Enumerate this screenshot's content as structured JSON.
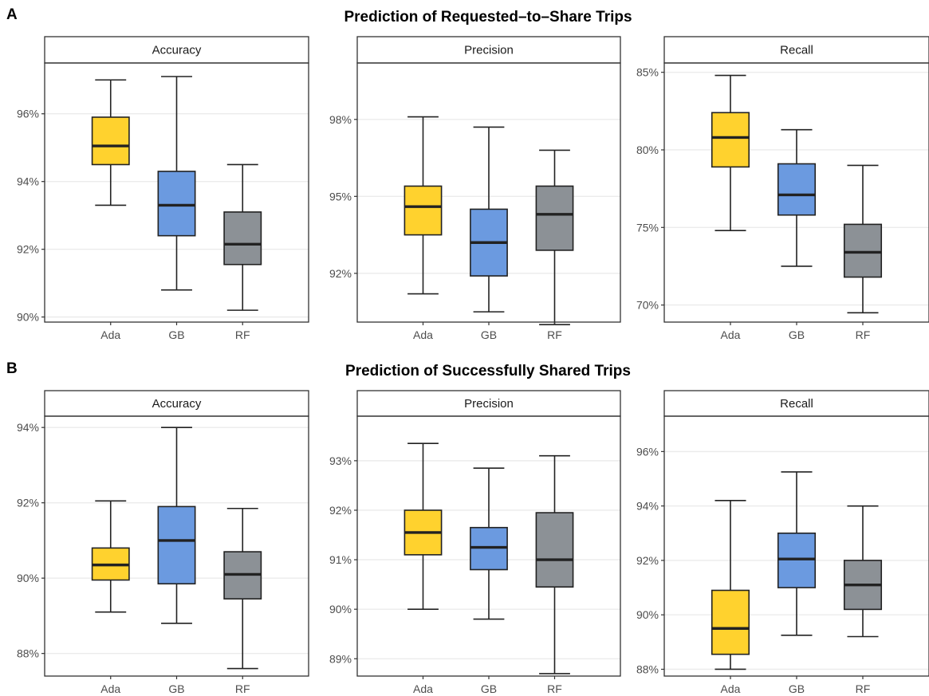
{
  "figure": {
    "panels": [
      {
        "letter": "A",
        "title": "Prediction of Requested–to–Share Trips"
      },
      {
        "letter": "B",
        "title": "Prediction of Successfully Shared Trips"
      }
    ]
  },
  "colors": {
    "Ada": "#FFD22E",
    "GB": "#6B9AE0",
    "RF": "#8C9196"
  },
  "chart_data": [
    {
      "type": "box",
      "facet": "Accuracy",
      "group": "A",
      "categories": [
        "Ada",
        "GB",
        "RF"
      ],
      "ylim": [
        89.85,
        97.5
      ],
      "yticks": [
        {
          "v": 90,
          "label": "90%"
        },
        {
          "v": 92,
          "label": "92%"
        },
        {
          "v": 94,
          "label": "94%"
        },
        {
          "v": 96,
          "label": "96%"
        }
      ],
      "boxes": [
        {
          "name": "Ada",
          "min": 93.3,
          "q1": 94.5,
          "median": 95.05,
          "q3": 95.9,
          "max": 97.0
        },
        {
          "name": "GB",
          "min": 90.8,
          "q1": 92.4,
          "median": 93.3,
          "q3": 94.3,
          "max": 97.1
        },
        {
          "name": "RF",
          "min": 90.2,
          "q1": 91.55,
          "median": 92.15,
          "q3": 93.1,
          "max": 94.5
        }
      ]
    },
    {
      "type": "box",
      "facet": "Precision",
      "group": "A",
      "categories": [
        "Ada",
        "GB",
        "RF"
      ],
      "ylim": [
        90.1,
        100.2
      ],
      "yticks": [
        {
          "v": 92,
          "label": "92%"
        },
        {
          "v": 95,
          "label": "95%"
        },
        {
          "v": 98,
          "label": "98%"
        }
      ],
      "boxes": [
        {
          "name": "Ada",
          "min": 91.2,
          "q1": 93.5,
          "median": 94.6,
          "q3": 95.4,
          "max": 98.1
        },
        {
          "name": "GB",
          "min": 90.5,
          "q1": 91.9,
          "median": 93.2,
          "q3": 94.5,
          "max": 97.7
        },
        {
          "name": "RF",
          "min": 90.0,
          "q1": 92.9,
          "median": 94.3,
          "q3": 95.4,
          "max": 96.8
        }
      ]
    },
    {
      "type": "box",
      "facet": "Recall",
      "group": "A",
      "categories": [
        "Ada",
        "GB",
        "RF"
      ],
      "ylim": [
        68.9,
        85.6
      ],
      "yticks": [
        {
          "v": 70,
          "label": "70%"
        },
        {
          "v": 75,
          "label": "75%"
        },
        {
          "v": 80,
          "label": "80%"
        },
        {
          "v": 85,
          "label": "85%"
        }
      ],
      "boxes": [
        {
          "name": "Ada",
          "min": 74.8,
          "q1": 78.9,
          "median": 80.8,
          "q3": 82.4,
          "max": 84.8
        },
        {
          "name": "GB",
          "min": 72.5,
          "q1": 75.8,
          "median": 77.1,
          "q3": 79.1,
          "max": 81.3
        },
        {
          "name": "RF",
          "min": 69.5,
          "q1": 71.8,
          "median": 73.4,
          "q3": 75.2,
          "max": 79.0
        }
      ]
    },
    {
      "type": "box",
      "facet": "Accuracy",
      "group": "B",
      "categories": [
        "Ada",
        "GB",
        "RF"
      ],
      "ylim": [
        87.4,
        94.3
      ],
      "yticks": [
        {
          "v": 88,
          "label": "88%"
        },
        {
          "v": 90,
          "label": "90%"
        },
        {
          "v": 92,
          "label": "92%"
        },
        {
          "v": 94,
          "label": "94%"
        }
      ],
      "boxes": [
        {
          "name": "Ada",
          "min": 89.1,
          "q1": 89.95,
          "median": 90.35,
          "q3": 90.8,
          "max": 92.05
        },
        {
          "name": "GB",
          "min": 88.8,
          "q1": 89.85,
          "median": 91.0,
          "q3": 91.9,
          "max": 94.0
        },
        {
          "name": "RF",
          "min": 87.6,
          "q1": 89.45,
          "median": 90.1,
          "q3": 90.7,
          "max": 91.85
        }
      ]
    },
    {
      "type": "box",
      "facet": "Precision",
      "group": "B",
      "categories": [
        "Ada",
        "GB",
        "RF"
      ],
      "ylim": [
        88.65,
        93.9
      ],
      "yticks": [
        {
          "v": 89,
          "label": "89%"
        },
        {
          "v": 90,
          "label": "90%"
        },
        {
          "v": 91,
          "label": "91%"
        },
        {
          "v": 92,
          "label": "92%"
        },
        {
          "v": 93,
          "label": "93%"
        }
      ],
      "boxes": [
        {
          "name": "Ada",
          "min": 90.0,
          "q1": 91.1,
          "median": 91.55,
          "q3": 92.0,
          "max": 93.35
        },
        {
          "name": "GB",
          "min": 89.8,
          "q1": 90.8,
          "median": 91.25,
          "q3": 91.65,
          "max": 92.85
        },
        {
          "name": "RF",
          "min": 88.7,
          "q1": 90.45,
          "median": 91.0,
          "q3": 91.95,
          "max": 93.1
        }
      ]
    },
    {
      "type": "box",
      "facet": "Recall",
      "group": "B",
      "categories": [
        "Ada",
        "GB",
        "RF"
      ],
      "ylim": [
        87.75,
        97.3
      ],
      "yticks": [
        {
          "v": 88,
          "label": "88%"
        },
        {
          "v": 90,
          "label": "90%"
        },
        {
          "v": 92,
          "label": "92%"
        },
        {
          "v": 94,
          "label": "94%"
        },
        {
          "v": 96,
          "label": "96%"
        }
      ],
      "boxes": [
        {
          "name": "Ada",
          "min": 88.0,
          "q1": 88.55,
          "median": 89.5,
          "q3": 90.9,
          "max": 94.2
        },
        {
          "name": "GB",
          "min": 89.25,
          "q1": 91.0,
          "median": 92.05,
          "q3": 93.0,
          "max": 95.25
        },
        {
          "name": "RF",
          "min": 89.2,
          "q1": 90.2,
          "median": 91.1,
          "q3": 92.0,
          "max": 94.0
        }
      ]
    }
  ]
}
